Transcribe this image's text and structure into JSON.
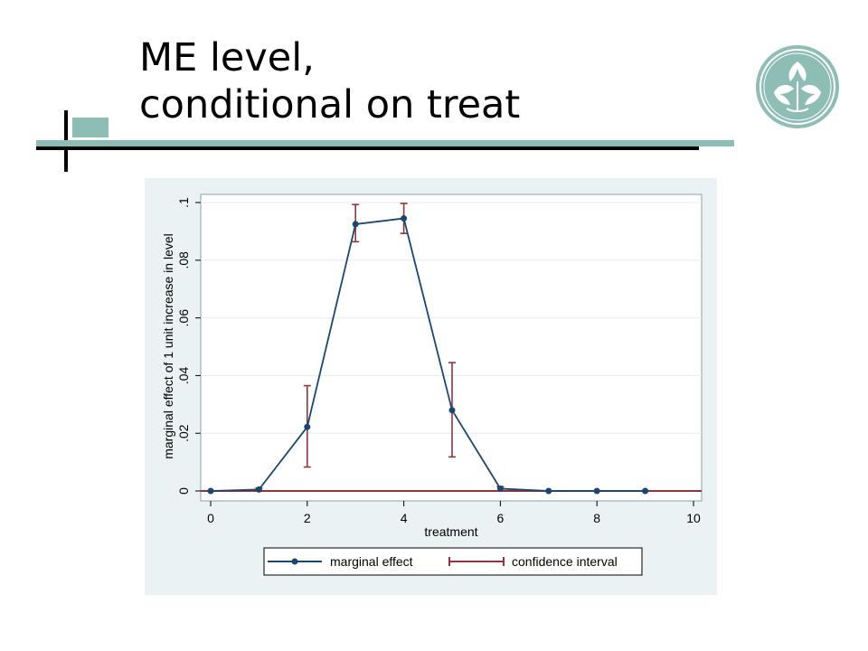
{
  "slide": {
    "title_line1": "ME level,",
    "title_line2": "conditional on treat"
  },
  "colors": {
    "accent": "#8dbdb4",
    "panel_bg": "#eaf2f3",
    "me_line": "#1a476f",
    "ci_line": "#90353b"
  },
  "icons": {
    "logo": "leaf-emblem-icon"
  },
  "chart_data": {
    "type": "line",
    "xlabel": "treatment",
    "ylabel": "marginal effect of 1 unit increase in level",
    "xlim": [
      0,
      10
    ],
    "ylim": [
      0,
      0.1
    ],
    "x_ticks": [
      "0",
      "2",
      "4",
      "6",
      "8",
      "10"
    ],
    "y_ticks": [
      "0",
      ".02",
      ".04",
      ".06",
      ".08",
      ".1"
    ],
    "grid": true,
    "legend_position": "bottom",
    "series": [
      {
        "name": "marginal effect",
        "x": [
          0,
          1,
          2,
          3,
          4,
          5,
          6,
          7,
          8,
          9
        ],
        "values": [
          0.0,
          0.0005,
          0.0222,
          0.0925,
          0.0945,
          0.028,
          0.0008,
          0.0,
          0.0,
          0.0
        ]
      },
      {
        "name": "confidence interval",
        "x": [
          0,
          1,
          2,
          3,
          4,
          5,
          6,
          7,
          8,
          9
        ],
        "lower": [
          0.0,
          0.0,
          0.0083,
          0.0864,
          0.0893,
          0.0118,
          0.0,
          0.0,
          0.0,
          0.0
        ],
        "upper": [
          0.0,
          0.001,
          0.0365,
          0.0993,
          0.0997,
          0.0445,
          0.0015,
          0.0,
          0.0,
          0.0
        ]
      }
    ]
  }
}
